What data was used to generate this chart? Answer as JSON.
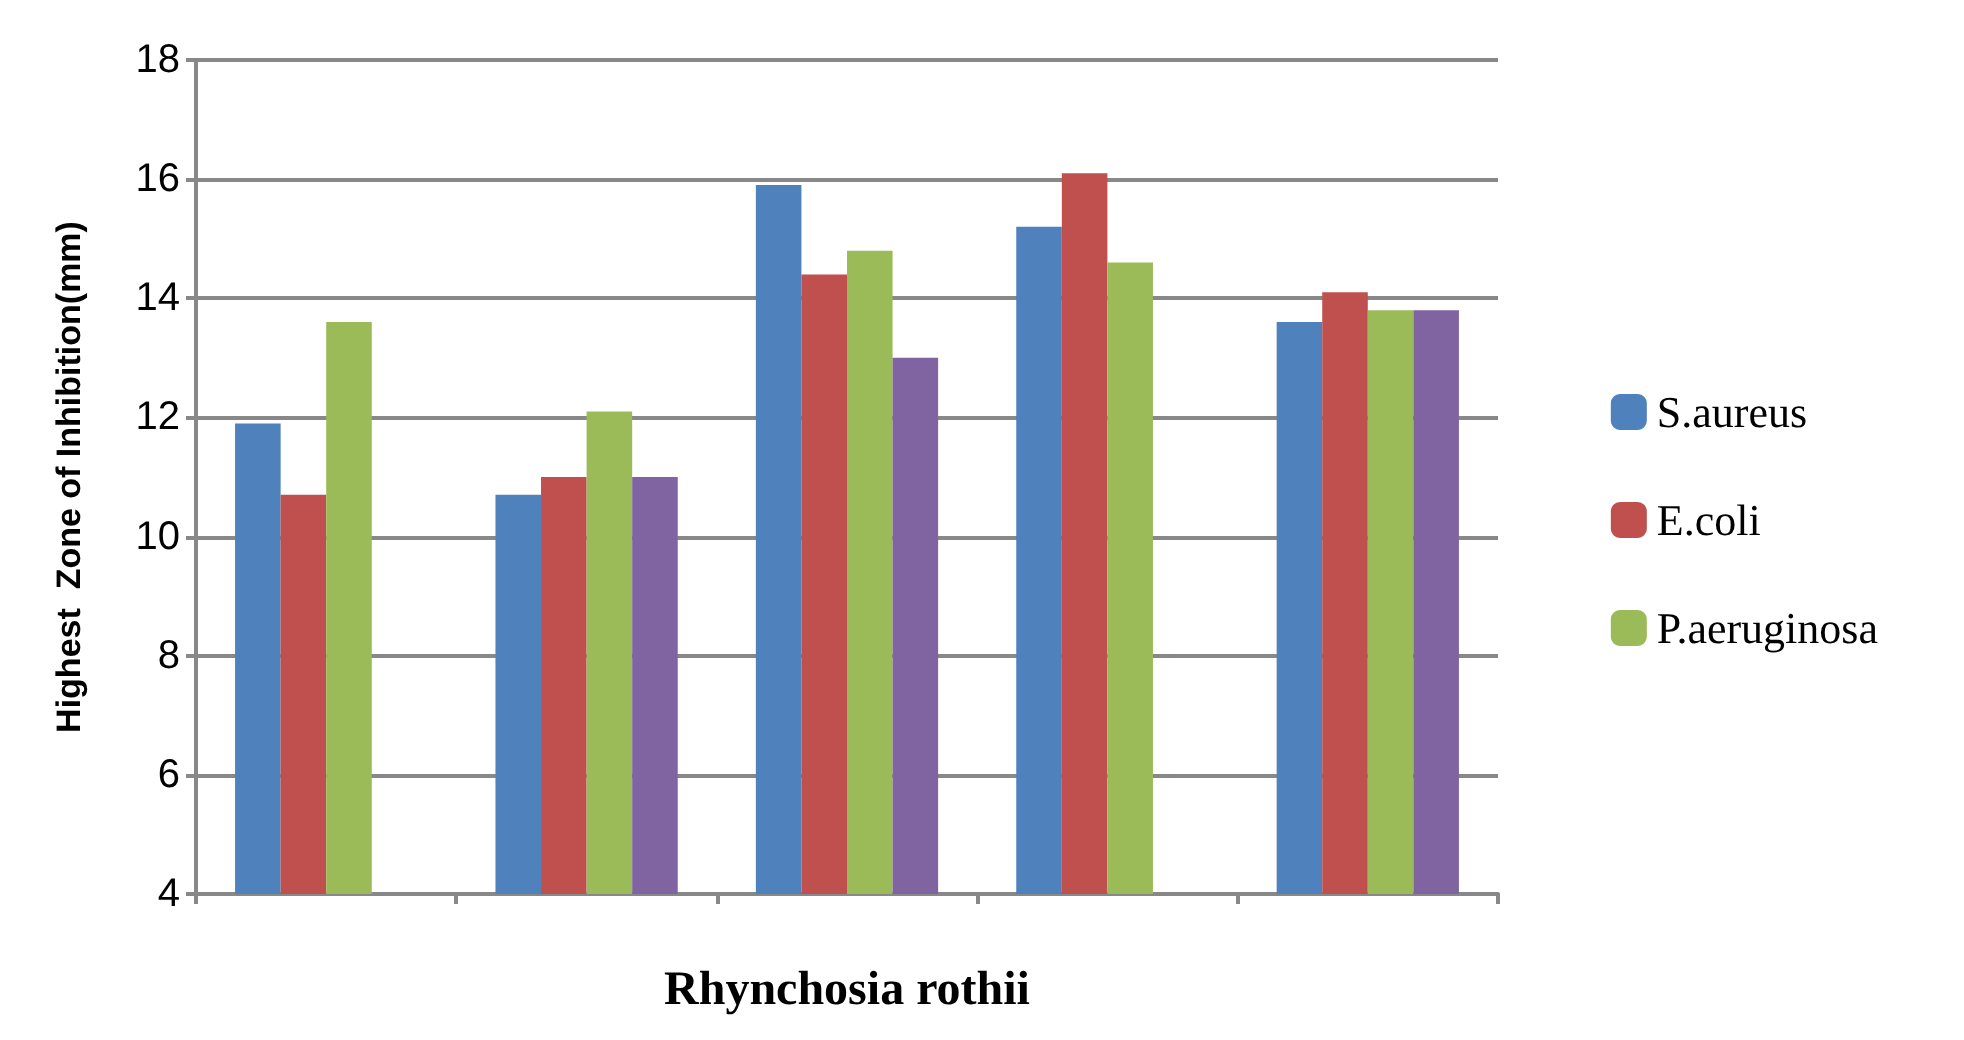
{
  "chart_data": {
    "type": "bar",
    "xlabel": "Rhynchosia rothii",
    "ylabel": "Highest  Zone of Inhibition(mm)",
    "categories": [
      null,
      null,
      null,
      null,
      null
    ],
    "series": [
      {
        "name": "S.aureus",
        "color": "#4f81bd",
        "values": [
          11.9,
          10.7,
          15.9,
          15.2,
          13.6
        ]
      },
      {
        "name": "E.coli",
        "color": "#c0504d",
        "values": [
          10.7,
          11.0,
          14.4,
          16.1,
          14.1
        ]
      },
      {
        "name": "P.aeruginosa",
        "color": "#9bbb59",
        "values": [
          13.6,
          12.1,
          14.8,
          14.6,
          13.8
        ]
      },
      {
        "name": null,
        "color": "#8064a2",
        "values": [
          null,
          11.0,
          13.0,
          null,
          13.8
        ]
      }
    ],
    "ylim": [
      4,
      18
    ],
    "yticks": [
      4,
      6,
      8,
      10,
      12,
      14,
      16,
      18
    ],
    "grid": "y",
    "legend": "right"
  }
}
